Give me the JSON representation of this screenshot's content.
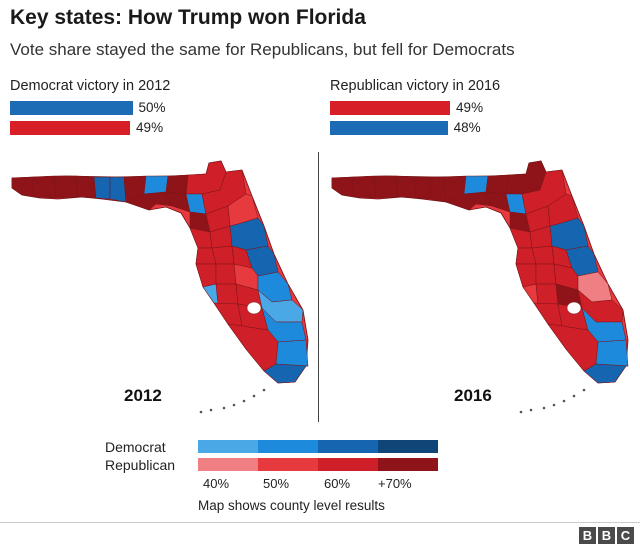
{
  "title": "Key states: How Trump won Florida",
  "subtitle": "Vote share stayed the same for Republicans, but fell for Democrats",
  "results": [
    {
      "heading": "Democrat victory in 2012",
      "rows": [
        {
          "party": "Democrat",
          "value": 50,
          "label": "50%",
          "color": "#1b6bb5"
        },
        {
          "party": "Republican",
          "value": 49,
          "label": "49%",
          "color": "#d61f26"
        }
      ]
    },
    {
      "heading": "Republican victory in 2016",
      "rows": [
        {
          "party": "Republican",
          "value": 49,
          "label": "49%",
          "color": "#d61f26"
        },
        {
          "party": "Democrat",
          "value": 48,
          "label": "48%",
          "color": "#1b6bb5"
        }
      ]
    }
  ],
  "maps": [
    {
      "year": "2012",
      "region": "Florida"
    },
    {
      "year": "2016",
      "region": "Florida"
    }
  ],
  "legend": {
    "democrat_label": "Democrat",
    "republican_label": "Republican",
    "democrat_colors": [
      "#4aa8e6",
      "#1e8adb",
      "#1565b0",
      "#0e4677"
    ],
    "republican_colors": [
      "#ef7f82",
      "#e63a3f",
      "#cf1f28",
      "#8e1419"
    ],
    "ticks": [
      "40%",
      "50%",
      "60%",
      "+70%"
    ],
    "note": "Map shows county level results"
  },
  "footer": {
    "logo_letters": [
      "B",
      "B",
      "C"
    ]
  }
}
